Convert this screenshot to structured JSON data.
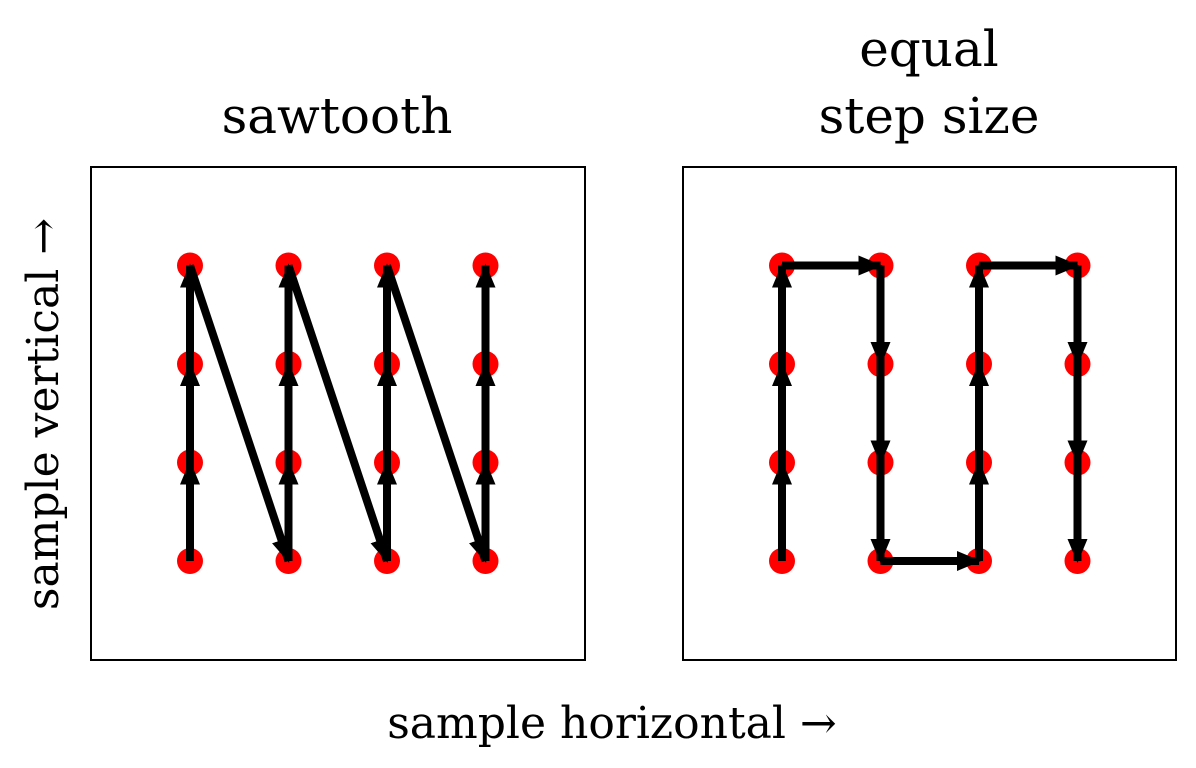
{
  "panels": [
    {
      "title_lines": [
        "sawtooth"
      ],
      "points": [
        [
          0,
          0
        ],
        [
          0,
          1
        ],
        [
          0,
          2
        ],
        [
          0,
          3
        ],
        [
          1,
          0
        ],
        [
          1,
          1
        ],
        [
          1,
          2
        ],
        [
          1,
          3
        ],
        [
          2,
          0
        ],
        [
          2,
          1
        ],
        [
          2,
          2
        ],
        [
          2,
          3
        ],
        [
          3,
          0
        ],
        [
          3,
          1
        ],
        [
          3,
          2
        ],
        [
          3,
          3
        ]
      ],
      "path": [
        [
          0,
          0
        ],
        [
          0,
          1
        ],
        [
          0,
          2
        ],
        [
          0,
          3
        ],
        [
          1,
          0
        ],
        [
          1,
          1
        ],
        [
          1,
          2
        ],
        [
          1,
          3
        ],
        [
          2,
          0
        ],
        [
          2,
          1
        ],
        [
          2,
          2
        ],
        [
          2,
          3
        ],
        [
          3,
          0
        ],
        [
          3,
          1
        ],
        [
          3,
          2
        ],
        [
          3,
          3
        ]
      ]
    },
    {
      "title_lines": [
        "equal",
        "step size"
      ],
      "points": [
        [
          0,
          0
        ],
        [
          0,
          1
        ],
        [
          0,
          2
        ],
        [
          0,
          3
        ],
        [
          1,
          0
        ],
        [
          1,
          1
        ],
        [
          1,
          2
        ],
        [
          1,
          3
        ],
        [
          2,
          0
        ],
        [
          2,
          1
        ],
        [
          2,
          2
        ],
        [
          2,
          3
        ],
        [
          3,
          0
        ],
        [
          3,
          1
        ],
        [
          3,
          2
        ],
        [
          3,
          3
        ]
      ],
      "path": [
        [
          0,
          0
        ],
        [
          0,
          1
        ],
        [
          0,
          2
        ],
        [
          0,
          3
        ],
        [
          1,
          3
        ],
        [
          1,
          2
        ],
        [
          1,
          1
        ],
        [
          1,
          0
        ],
        [
          2,
          0
        ],
        [
          2,
          1
        ],
        [
          2,
          2
        ],
        [
          2,
          3
        ],
        [
          3,
          3
        ],
        [
          3,
          2
        ],
        [
          3,
          1
        ],
        [
          3,
          0
        ]
      ]
    }
  ],
  "xlabel": "sample horizontal →",
  "ylabel": "sample vertical →",
  "colors": {
    "point": "#ff0000",
    "arrow": "#000000"
  }
}
